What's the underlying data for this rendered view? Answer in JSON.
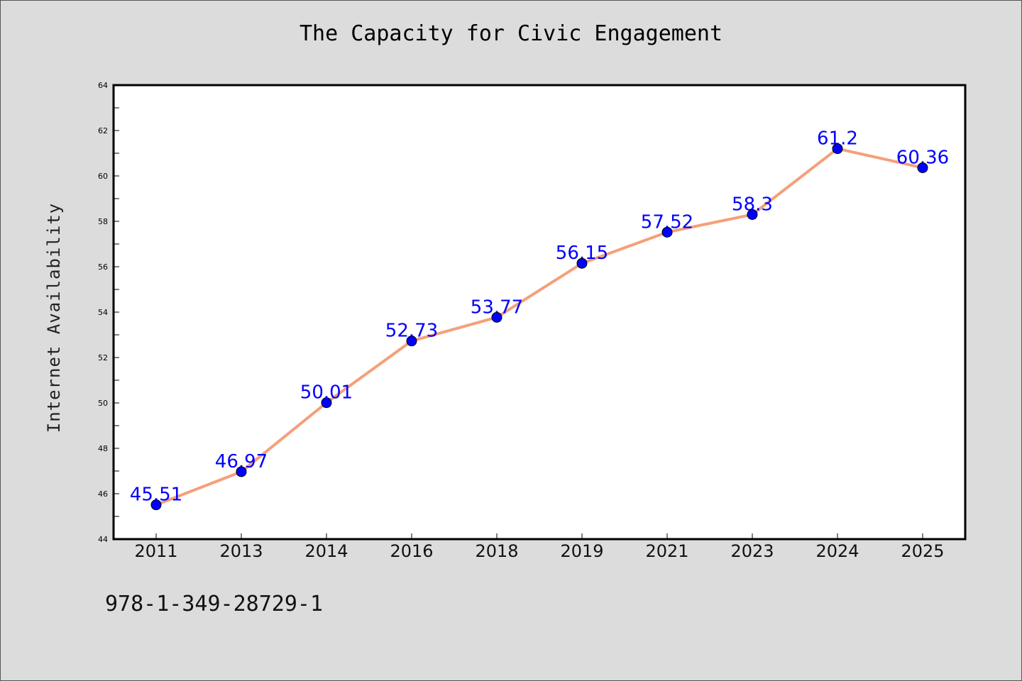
{
  "chart_data": {
    "type": "line",
    "title": "The Capacity for Civic Engagement",
    "xlabel": "",
    "ylabel": "Internet Availability",
    "categories": [
      "2011",
      "2013",
      "2014",
      "2016",
      "2018",
      "2019",
      "2021",
      "2023",
      "2024",
      "2025"
    ],
    "series": [
      {
        "values": [
          45.51,
          46.97,
          50.01,
          52.73,
          53.77,
          56.15,
          57.52,
          58.3,
          61.2,
          60.36
        ]
      }
    ],
    "data_labels": [
      "45.51",
      "46.97",
      "50.01",
      "52.73",
      "53.77",
      "56.15",
      "57.52",
      "58.3",
      "61.2",
      "60.36"
    ],
    "ylim": [
      44,
      64
    ],
    "y_ticks": [
      44,
      46,
      48,
      50,
      52,
      54,
      56,
      58,
      60,
      62,
      64
    ],
    "grid": false,
    "legend": "none",
    "colors": {
      "line": "#f4a07a",
      "marker": "#0000ff",
      "label": "#0000ff",
      "plot_background": "#ffffff",
      "page_background": "#dcdcdc"
    }
  },
  "footer": {
    "code": "978-1-349-28729-1"
  }
}
